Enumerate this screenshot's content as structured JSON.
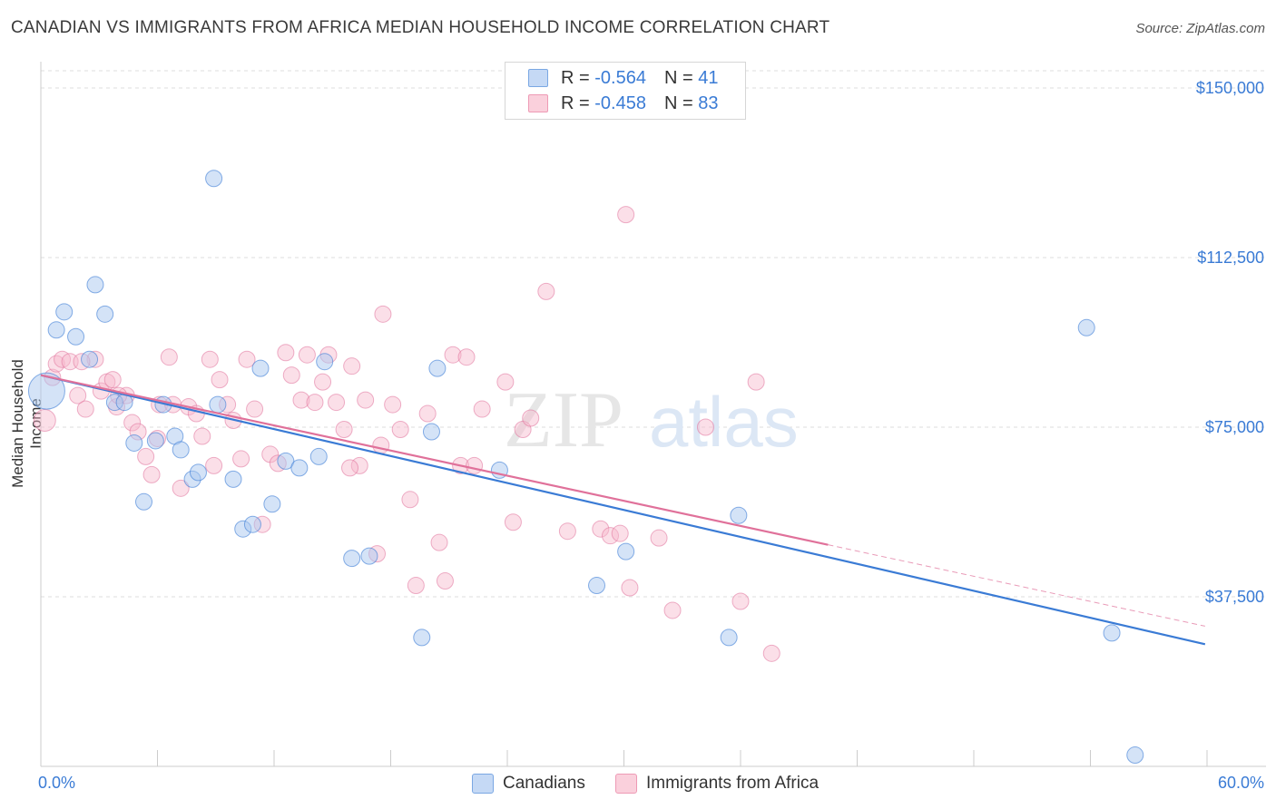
{
  "title": "CANADIAN VS IMMIGRANTS FROM AFRICA MEDIAN HOUSEHOLD INCOME CORRELATION CHART",
  "source": "Source: ZipAtlas.com",
  "watermark": {
    "zip": "ZIP",
    "atlas": "atlas"
  },
  "legend": {
    "rows": [
      {
        "r_label": "R =",
        "r_value": "-0.564",
        "n_label": "N =",
        "n_value": "41",
        "color": "#a9c8f0"
      },
      {
        "r_label": "R =",
        "r_value": "-0.458",
        "n_label": "N =",
        "n_value": "83",
        "color": "#f7b8cb"
      }
    ]
  },
  "bottom_legend": {
    "canadians": "Canadians",
    "africa": "Immigrants from Africa"
  },
  "chart_data": {
    "type": "scatter",
    "title": "CANADIAN VS IMMIGRANTS FROM AFRICA MEDIAN HOUSEHOLD INCOME CORRELATION CHART",
    "ylabel": "Median Household Income",
    "xlabel": "",
    "xlim": [
      0,
      60
    ],
    "ylim": [
      0,
      157500
    ],
    "x_tick_labels": [
      "0.0%",
      "60.0%"
    ],
    "y_ticks": [
      37500,
      75000,
      112500,
      150000
    ],
    "y_tick_labels": [
      "$37,500",
      "$75,000",
      "$112,500",
      "$150,000"
    ],
    "grid": "horizontal dashed",
    "colors": {
      "canadians": "#3a7bd5",
      "canadians_fill": "#a9c8f0",
      "africa": "#e0719a",
      "africa_fill": "#f7b8cb"
    },
    "series": [
      {
        "name": "Canadians",
        "trend": {
          "x": [
            0,
            59.9
          ],
          "y": [
            86500,
            27000
          ],
          "dashed_to": null
        },
        "points": [
          [
            0.3,
            83000,
            20
          ],
          [
            0.8,
            96500,
            9
          ],
          [
            1.2,
            100500,
            9
          ],
          [
            1.8,
            95000,
            9
          ],
          [
            2.5,
            90000,
            9
          ],
          [
            2.8,
            106500,
            9
          ],
          [
            3.3,
            100000,
            9
          ],
          [
            3.8,
            80500,
            9
          ],
          [
            4.3,
            80500,
            9
          ],
          [
            4.8,
            71500,
            9
          ],
          [
            5.3,
            58500,
            9
          ],
          [
            5.9,
            72000,
            9
          ],
          [
            6.3,
            80000,
            9
          ],
          [
            6.9,
            73000,
            9
          ],
          [
            7.2,
            70000,
            9
          ],
          [
            7.8,
            63500,
            9
          ],
          [
            8.1,
            65000,
            9
          ],
          [
            8.9,
            130000,
            9
          ],
          [
            9.1,
            80000,
            9
          ],
          [
            9.9,
            63500,
            9
          ],
          [
            10.4,
            52500,
            9
          ],
          [
            10.9,
            53500,
            9
          ],
          [
            11.3,
            88000,
            9
          ],
          [
            11.9,
            58000,
            9
          ],
          [
            12.6,
            67500,
            9
          ],
          [
            13.3,
            66000,
            9
          ],
          [
            14.3,
            68500,
            9
          ],
          [
            14.6,
            89500,
            9
          ],
          [
            16.0,
            46000,
            9
          ],
          [
            16.9,
            46500,
            9
          ],
          [
            19.6,
            28500,
            9
          ],
          [
            20.1,
            74000,
            9
          ],
          [
            20.4,
            88000,
            9
          ],
          [
            23.6,
            65500,
            9
          ],
          [
            28.6,
            40000,
            9
          ],
          [
            30.1,
            47500,
            9
          ],
          [
            35.4,
            28500,
            9
          ],
          [
            35.9,
            55500,
            9
          ],
          [
            53.8,
            97000,
            9
          ],
          [
            55.1,
            29500,
            9
          ],
          [
            56.3,
            2500,
            9
          ]
        ]
      },
      {
        "name": "Immigrants from Africa",
        "trend": {
          "x": [
            0,
            40.5
          ],
          "y": [
            86500,
            49000
          ],
          "dashed_to": [
            59.9,
            31000
          ]
        },
        "points": [
          [
            0.2,
            76500,
            12
          ],
          [
            0.6,
            86000,
            9
          ],
          [
            0.8,
            89000,
            9
          ],
          [
            1.1,
            90000,
            9
          ],
          [
            1.5,
            89500,
            9
          ],
          [
            1.9,
            82000,
            9
          ],
          [
            2.3,
            79000,
            9
          ],
          [
            2.8,
            90000,
            9
          ],
          [
            3.1,
            83000,
            9
          ],
          [
            3.4,
            85000,
            9
          ],
          [
            3.7,
            85500,
            9
          ],
          [
            3.9,
            79500,
            9
          ],
          [
            4.4,
            82000,
            9
          ],
          [
            4.7,
            76000,
            9
          ],
          [
            5.0,
            74000,
            9
          ],
          [
            5.4,
            68500,
            9
          ],
          [
            5.7,
            64500,
            9
          ],
          [
            6.1,
            80000,
            9
          ],
          [
            6.6,
            90500,
            9
          ],
          [
            6.8,
            80000,
            9
          ],
          [
            7.2,
            61500,
            9
          ],
          [
            7.6,
            79500,
            9
          ],
          [
            8.0,
            78000,
            9
          ],
          [
            8.3,
            73000,
            9
          ],
          [
            8.7,
            90000,
            9
          ],
          [
            8.9,
            66500,
            9
          ],
          [
            9.2,
            85500,
            9
          ],
          [
            9.6,
            80000,
            9
          ],
          [
            9.9,
            76500,
            9
          ],
          [
            10.3,
            68000,
            9
          ],
          [
            10.6,
            90000,
            9
          ],
          [
            11.0,
            79000,
            9
          ],
          [
            11.4,
            53500,
            9
          ],
          [
            11.8,
            69000,
            9
          ],
          [
            12.2,
            67000,
            9
          ],
          [
            12.6,
            91500,
            9
          ],
          [
            12.9,
            86500,
            9
          ],
          [
            13.4,
            81000,
            9
          ],
          [
            13.7,
            91000,
            9
          ],
          [
            14.1,
            80500,
            9
          ],
          [
            14.5,
            85000,
            9
          ],
          [
            14.8,
            91000,
            9
          ],
          [
            15.2,
            80500,
            9
          ],
          [
            15.6,
            74500,
            9
          ],
          [
            16.0,
            88500,
            9
          ],
          [
            16.4,
            66500,
            9
          ],
          [
            16.7,
            81000,
            9
          ],
          [
            17.3,
            47000,
            9
          ],
          [
            17.6,
            100000,
            9
          ],
          [
            18.1,
            80000,
            9
          ],
          [
            18.5,
            74500,
            9
          ],
          [
            19.0,
            59000,
            9
          ],
          [
            19.3,
            40000,
            9
          ],
          [
            19.9,
            78000,
            9
          ],
          [
            20.5,
            49500,
            9
          ],
          [
            20.8,
            41000,
            9
          ],
          [
            21.2,
            91000,
            9
          ],
          [
            21.6,
            66500,
            9
          ],
          [
            21.9,
            90500,
            9
          ],
          [
            22.7,
            79000,
            9
          ],
          [
            23.9,
            85000,
            9
          ],
          [
            24.3,
            54000,
            9
          ],
          [
            24.8,
            74500,
            9
          ],
          [
            25.2,
            77000,
            9
          ],
          [
            26.0,
            105000,
            9
          ],
          [
            27.1,
            52000,
            9
          ],
          [
            28.8,
            52500,
            9
          ],
          [
            29.3,
            51000,
            9
          ],
          [
            29.8,
            51500,
            9
          ],
          [
            30.1,
            122000,
            9
          ],
          [
            30.3,
            39500,
            9
          ],
          [
            31.8,
            50500,
            9
          ],
          [
            32.5,
            34500,
            9
          ],
          [
            34.2,
            75000,
            9
          ],
          [
            36.0,
            36500,
            9
          ],
          [
            36.8,
            85000,
            9
          ],
          [
            37.6,
            25000,
            9
          ],
          [
            2.1,
            89500,
            9
          ],
          [
            4.0,
            82000,
            9
          ],
          [
            6.0,
            72500,
            9
          ],
          [
            15.9,
            66000,
            9
          ],
          [
            17.5,
            71000,
            9
          ],
          [
            22.3,
            66500,
            9
          ]
        ]
      }
    ]
  }
}
